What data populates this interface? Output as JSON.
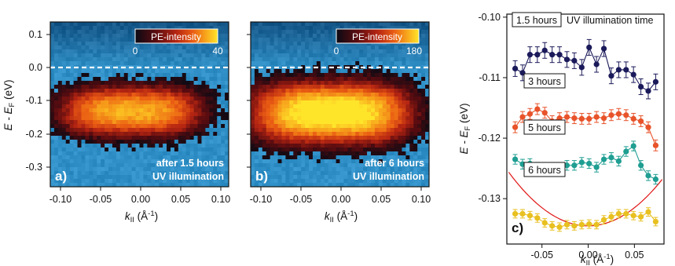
{
  "colors": {
    "map_background": "#2f8fc6",
    "colormap": [
      "#0a0a14",
      "#5a0c10",
      "#b52512",
      "#ea5d13",
      "#f7a21b",
      "#ffe52a"
    ],
    "dashed_line": "#ffffff",
    "fit_line": "#e01515",
    "series_1_5h": "#1b1a5a",
    "series_3h": "#e8532a",
    "series_5h": "#1f9e92",
    "series_6h": "#e8c020"
  },
  "panel_a": {
    "label": "a)",
    "annotation_line1": "after 1.5 hours",
    "annotation_line2": "UV illumination",
    "colorbar_title": "PE-intensity",
    "colorbar_min": "0",
    "colorbar_max": "40",
    "ylabel_main": "E - E",
    "ylabel_sub": "F",
    "ylabel_unit": " (eV)",
    "xlabel_main": "k",
    "xlabel_sub": "II",
    "xlabel_unit": " (Å",
    "xlabel_exp": "-1",
    "xlabel_close": ")",
    "y_ticks": [
      "0.1",
      "0.0",
      "-0.1",
      "-0.2",
      "-0.3"
    ],
    "x_ticks": [
      "-0.10",
      "-0.05",
      "0.00",
      "0.05",
      "0.10"
    ]
  },
  "panel_b": {
    "label": "b)",
    "annotation_line1": "after 6 hours",
    "annotation_line2": "UV illumination",
    "colorbar_title": "PE-intensity",
    "colorbar_min": "0",
    "colorbar_max": "180",
    "xlabel_main": "k",
    "xlabel_sub": "II",
    "xlabel_unit": " (Å",
    "xlabel_exp": "-1",
    "xlabel_close": ")",
    "x_ticks": [
      "-0.10",
      "-0.05",
      "0.00",
      "0.05",
      "0.10"
    ]
  },
  "chart_data": [
    {
      "type": "heatmap",
      "panel": "a",
      "xlim": [
        -0.11,
        0.11
      ],
      "ylim": [
        -0.35,
        0.13
      ],
      "fermi_level_dashed": 0.0,
      "intensity_range": [
        0,
        40
      ],
      "blob_center": {
        "k": -0.01,
        "E": -0.13
      },
      "blob_halfwidth": {
        "k": 0.085,
        "E": 0.07
      }
    },
    {
      "type": "heatmap",
      "panel": "b",
      "xlim": [
        -0.11,
        0.11
      ],
      "ylim": [
        -0.35,
        0.13
      ],
      "fermi_level_dashed": 0.0,
      "intensity_range": [
        0,
        180
      ],
      "blob_center": {
        "k": -0.01,
        "E": -0.135
      },
      "blob_halfwidth": {
        "k": 0.095,
        "E": 0.085
      }
    },
    {
      "type": "scatter",
      "panel": "c",
      "label": "c)",
      "xlim": [
        -0.088,
        0.082
      ],
      "ylim": [
        -0.1375,
        -0.0995
      ],
      "y_ticks": [
        -0.1,
        -0.11,
        -0.12,
        -0.13
      ],
      "y_tick_labels": [
        "-0.10",
        "-0.11",
        "-0.12",
        "-0.13"
      ],
      "x_ticks": [
        -0.05,
        0.0,
        0.05
      ],
      "x_tick_labels": [
        "-0.05",
        "0.00",
        "0.05"
      ],
      "ylabel_main": "E - E",
      "ylabel_sub": "F",
      "ylabel_unit": " (eV)",
      "xlabel_main": "k",
      "xlabel_sub": "II",
      "xlabel_unit": " (Å",
      "xlabel_exp": "-1",
      "xlabel_close": ")",
      "legend_title": "UV illumination time",
      "x": [
        -0.079,
        -0.071,
        -0.063,
        -0.055,
        -0.047,
        -0.039,
        -0.031,
        -0.023,
        -0.015,
        -0.007,
        0.001,
        0.009,
        0.017,
        0.025,
        0.033,
        0.041,
        0.049,
        0.057,
        0.065,
        0.073
      ],
      "series": [
        {
          "name": "1.5 hours",
          "error": 0.0013,
          "values": [
            -0.1085,
            -0.1092,
            -0.1062,
            -0.1062,
            -0.1055,
            -0.1062,
            -0.1062,
            -0.107,
            -0.1072,
            -0.1083,
            -0.105,
            -0.1078,
            -0.1052,
            -0.1097,
            -0.1087,
            -0.1087,
            -0.1095,
            -0.1115,
            -0.1122,
            -0.1107
          ]
        },
        {
          "name": "3 hours",
          "error": 0.0009,
          "values": [
            -0.1182,
            -0.1165,
            -0.116,
            -0.1152,
            -0.1158,
            -0.1172,
            -0.1167,
            -0.1165,
            -0.1167,
            -0.1168,
            -0.1168,
            -0.1165,
            -0.1167,
            -0.1162,
            -0.116,
            -0.1162,
            -0.1168,
            -0.1172,
            -0.1182,
            -0.1212
          ]
        },
        {
          "name": "5 hours",
          "error": 0.0008,
          "values": [
            -0.1235,
            -0.1243,
            -0.1242,
            -0.1248,
            -0.1253,
            -0.125,
            -0.125,
            -0.1245,
            -0.1245,
            -0.124,
            -0.1242,
            -0.1248,
            -0.1235,
            -0.1232,
            -0.1238,
            -0.1222,
            -0.1213,
            -0.1245,
            -0.1262,
            -0.1268
          ]
        },
        {
          "name": "6 hours",
          "error": 0.0007,
          "values": [
            -0.1325,
            -0.1325,
            -0.1328,
            -0.1332,
            -0.134,
            -0.1345,
            -0.1347,
            -0.1343,
            -0.1345,
            -0.1343,
            -0.1342,
            -0.1343,
            -0.1335,
            -0.133,
            -0.1325,
            -0.1325,
            -0.1328,
            -0.133,
            -0.1322,
            -0.1338
          ]
        }
      ],
      "fit_6h": {
        "a": 1.2,
        "k0": 0.0,
        "E0": -0.1345
      }
    }
  ]
}
